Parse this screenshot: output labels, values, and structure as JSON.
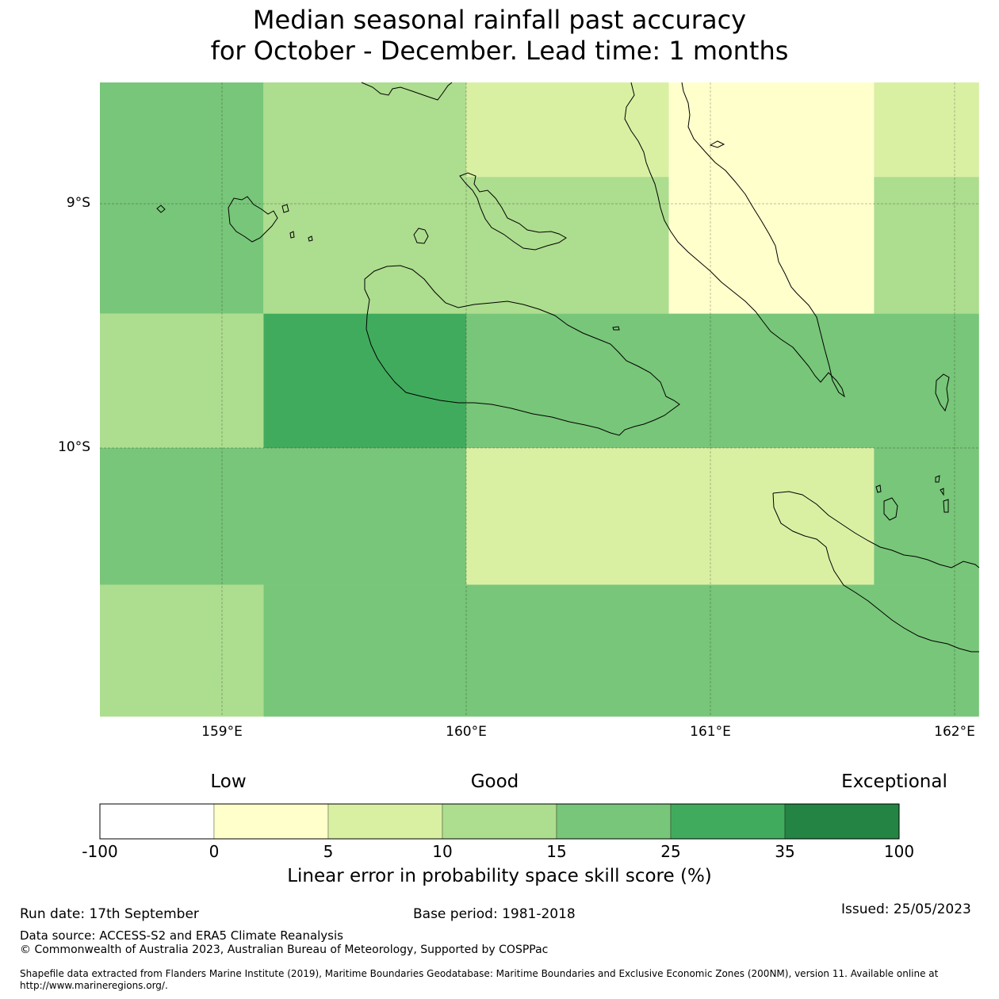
{
  "title": {
    "line1": "Median seasonal rainfall past accuracy",
    "line2": "for October - December. Lead time: 1 months"
  },
  "map": {
    "lat_labels": [
      "9°S",
      "10°S"
    ],
    "lon_labels": [
      "159°E",
      "160°E",
      "161°E",
      "162°E"
    ],
    "land_outline_color": "#000000",
    "grid_cells": [
      {
        "lon0": 158.5,
        "lon1": 159.17,
        "lat0": -8.5,
        "lat1": -9.45,
        "category": "15-25"
      },
      {
        "lon0": 159.17,
        "lon1": 160.0,
        "lat0": -8.5,
        "lat1": -9.45,
        "category": "10-15"
      },
      {
        "lon0": 160.0,
        "lon1": 160.83,
        "lat0": -8.5,
        "lat1": -8.89,
        "category": "5-10"
      },
      {
        "lon0": 160.0,
        "lon1": 160.83,
        "lat0": -8.89,
        "lat1": -9.45,
        "category": "10-15"
      },
      {
        "lon0": 160.83,
        "lon1": 161.67,
        "lat0": -8.5,
        "lat1": -9.45,
        "category": "0-5"
      },
      {
        "lon0": 161.67,
        "lon1": 162.1,
        "lat0": -8.5,
        "lat1": -8.89,
        "category": "5-10"
      },
      {
        "lon0": 161.67,
        "lon1": 162.1,
        "lat0": -8.89,
        "lat1": -9.45,
        "category": "10-15"
      },
      {
        "lon0": 158.5,
        "lon1": 159.17,
        "lat0": -9.45,
        "lat1": -10.0,
        "category": "10-15"
      },
      {
        "lon0": 159.17,
        "lon1": 160.0,
        "lat0": -9.45,
        "lat1": -10.0,
        "category": "25-35"
      },
      {
        "lon0": 160.0,
        "lon1": 162.1,
        "lat0": -9.45,
        "lat1": -10.0,
        "category": "15-25"
      },
      {
        "lon0": 158.5,
        "lon1": 160.0,
        "lat0": -10.0,
        "lat1": -10.56,
        "category": "15-25"
      },
      {
        "lon0": 160.0,
        "lon1": 161.67,
        "lat0": -10.0,
        "lat1": -10.56,
        "category": "5-10"
      },
      {
        "lon0": 161.67,
        "lon1": 162.1,
        "lat0": -10.0,
        "lat1": -10.56,
        "category": "15-25"
      },
      {
        "lon0": 158.5,
        "lon1": 159.17,
        "lat0": -10.56,
        "lat1": -11.1,
        "category": "10-15"
      },
      {
        "lon0": 159.17,
        "lon1": 162.1,
        "lat0": -10.56,
        "lat1": -11.1,
        "category": "15-25"
      }
    ]
  },
  "colorbar": {
    "category_labels": [
      "Low",
      "Good",
      "Exceptional"
    ],
    "bins": [
      {
        "range": "-100-0",
        "color": "#ffffff"
      },
      {
        "range": "0-5",
        "color": "#ffffcc"
      },
      {
        "range": "5-10",
        "color": "#d9f0a3"
      },
      {
        "range": "10-15",
        "color": "#addd8e"
      },
      {
        "range": "15-25",
        "color": "#78c679"
      },
      {
        "range": "25-35",
        "color": "#41ab5d"
      },
      {
        "range": "35-100",
        "color": "#238443"
      }
    ],
    "ticks": [
      "-100",
      "0",
      "5",
      "10",
      "15",
      "25",
      "35",
      "100"
    ],
    "label": "Linear error in probability space skill score (%)"
  },
  "footer": {
    "run_date": "Run date: 17th September",
    "base_period": "Base period: 1981-2018",
    "issued": "Issued: 25/05/2023",
    "data_source": "Data source: ACCESS-S2 and ERA5 Climate Reanalysis",
    "copyright": "© Commonwealth of Australia 2023, Australian Bureau of Meteorology, Supported by COSPPac",
    "shapefile": "Shapefile data extracted from Flanders Marine Institute (2019), Maritime Boundaries Geodatabase: Maritime Boundaries and Exclusive Economic Zones (200NM), version 11. Available online at http://www.marineregions.org/."
  }
}
